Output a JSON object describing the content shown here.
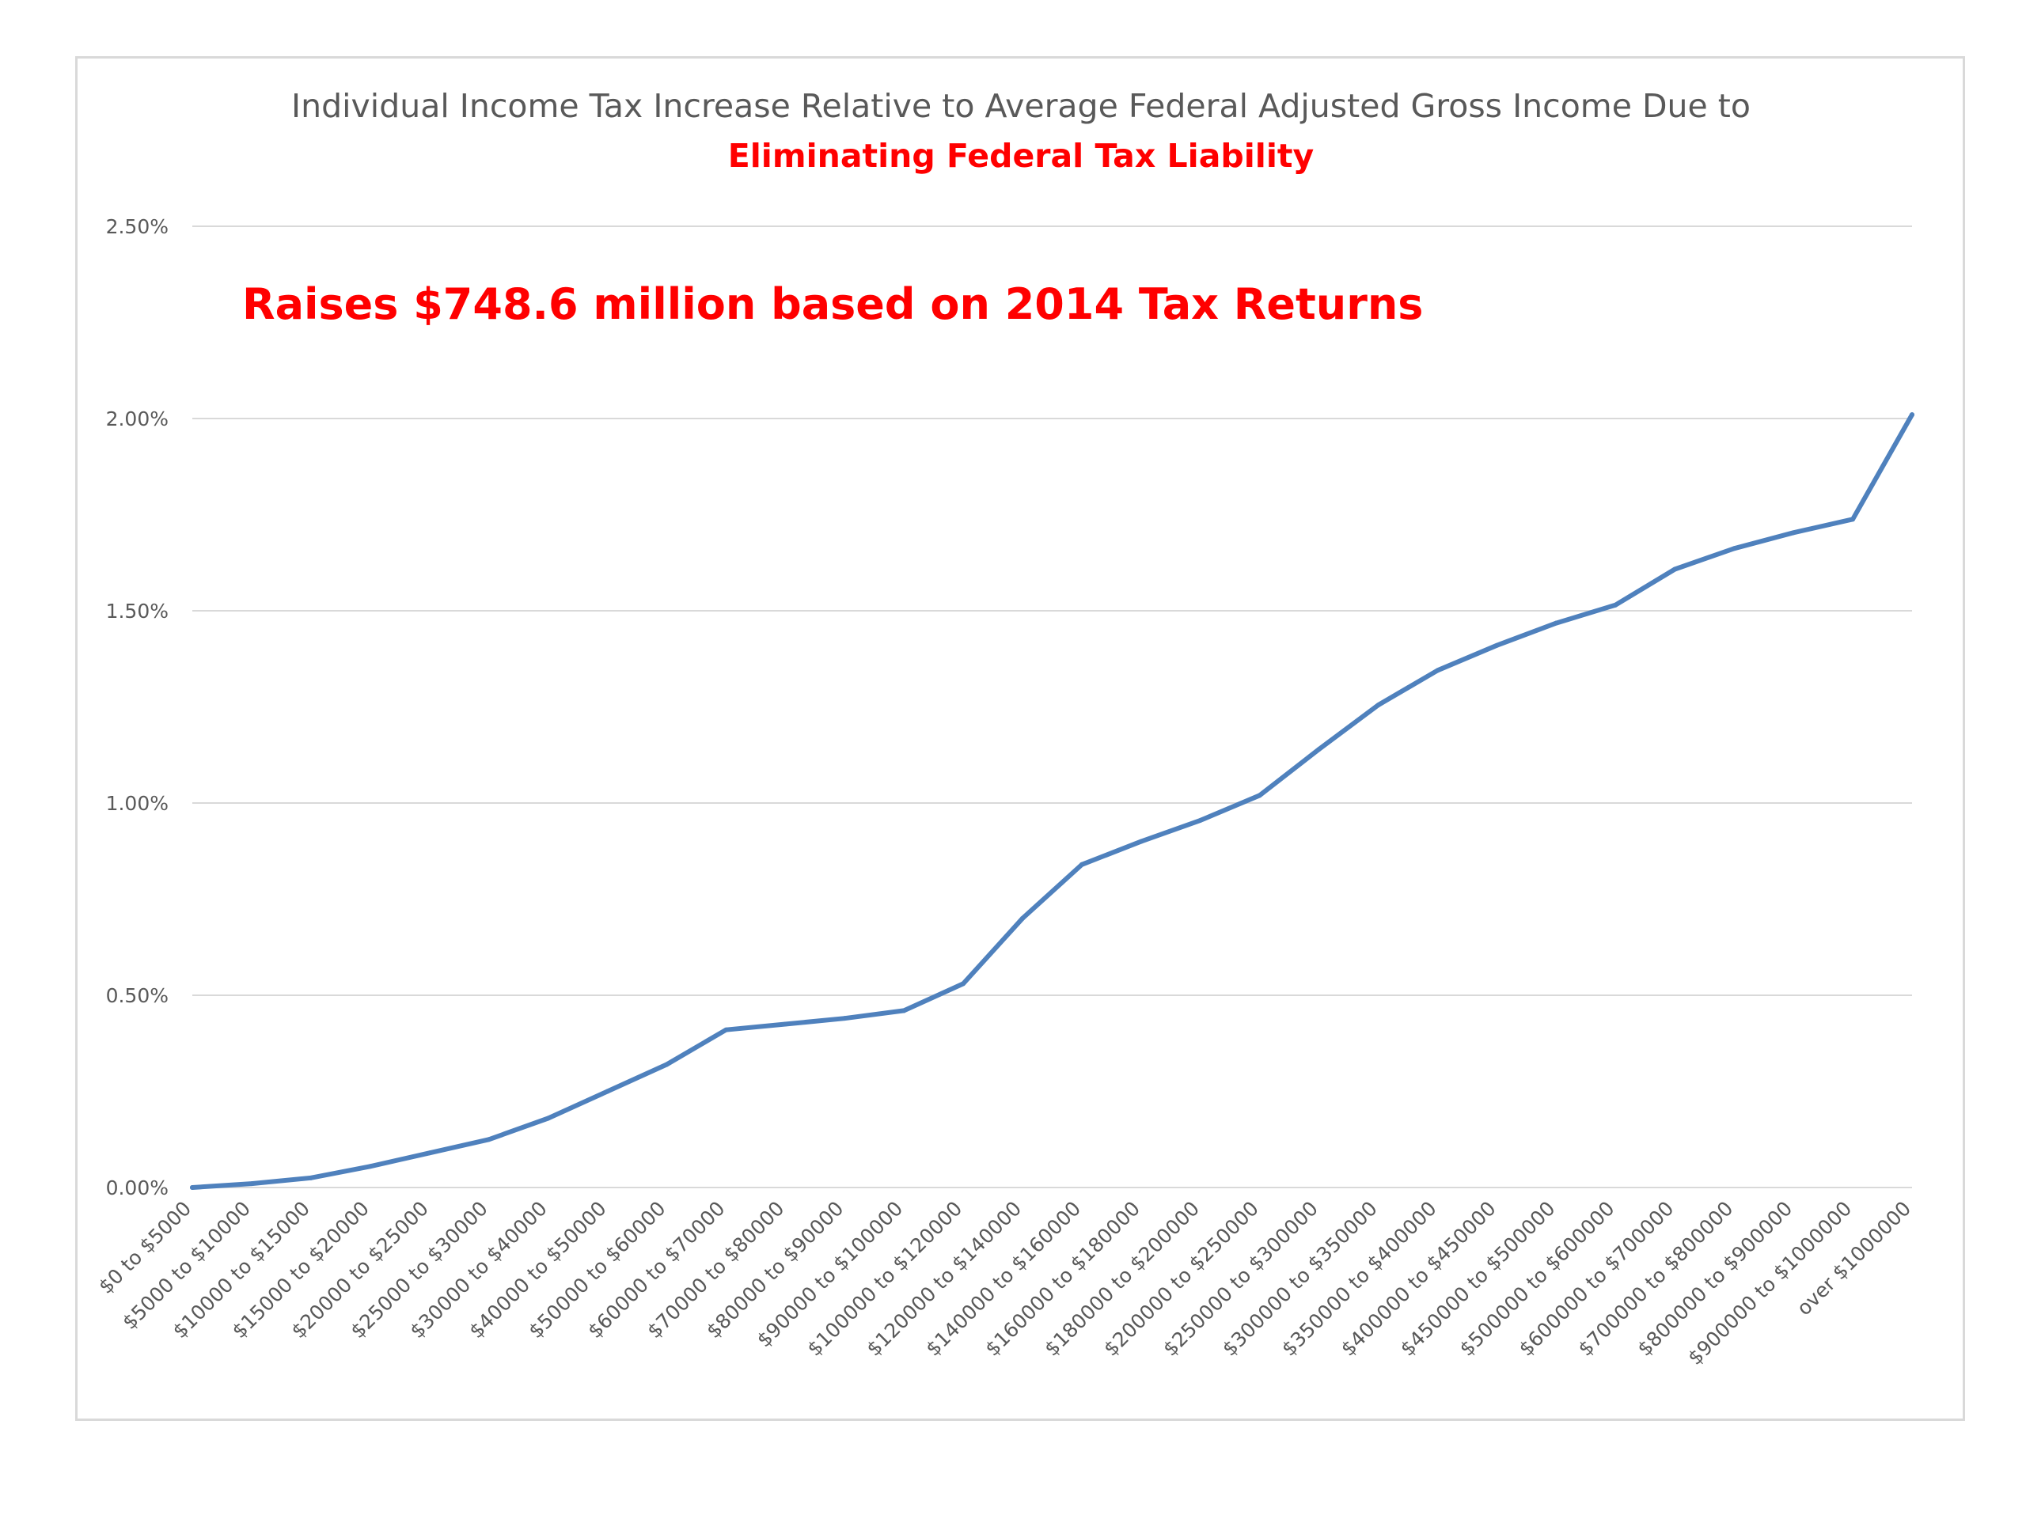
{
  "chart_data": {
    "type": "line",
    "title": "Individual Income Tax Increase Relative to Average Federal Adjusted Gross Income Due to",
    "subtitle": "Eliminating Federal Tax Liability",
    "annotation": "Raises $748.6 million based on 2014 Tax Returns",
    "xlabel": "",
    "ylabel": "",
    "ylim": [
      0,
      0.025
    ],
    "yticks": [
      0,
      0.005,
      0.01,
      0.015,
      0.02,
      0.025
    ],
    "ytick_labels": [
      "0.00%",
      "0.50%",
      "1.00%",
      "1.50%",
      "2.00%",
      "2.50%"
    ],
    "grid": true,
    "legend": "none",
    "categories": [
      "$0 to $5000",
      "$5000 to $10000",
      "$10000 to $15000",
      "$15000 to $20000",
      "$20000 to $25000",
      "$25000 to $30000",
      "$30000 to $40000",
      "$40000 to $50000",
      "$50000 to $60000",
      "$60000 to $70000",
      "$70000 to $80000",
      "$80000 to $90000",
      "$90000 to $100000",
      "$100000 to $120000",
      "$120000 to $140000",
      "$140000 to $160000",
      "$160000 to $180000",
      "$180000 to $200000",
      "$200000 to $250000",
      "$250000 to $300000",
      "$300000 to $350000",
      "$350000 to $400000",
      "$400000 to $450000",
      "$450000 to $500000",
      "$500000 to $600000",
      "$600000 to $700000",
      "$700000 to $800000",
      "$800000 to $900000",
      "$900000 to $1000000",
      "over $1000000"
    ],
    "series": [
      {
        "values": [
          0.0,
          0.0001,
          0.00025,
          0.00055,
          0.0009,
          0.00125,
          0.0018,
          0.0025,
          0.0032,
          0.0041,
          0.00425,
          0.0044,
          0.0046,
          0.0053,
          0.007,
          0.0084,
          0.009,
          0.00955,
          0.0102,
          0.0114,
          0.01255,
          0.01345,
          0.0141,
          0.01468,
          0.01515,
          0.01608,
          0.01662,
          0.01703,
          0.01738,
          0.0201
        ],
        "color": "#4f81bd"
      }
    ]
  }
}
